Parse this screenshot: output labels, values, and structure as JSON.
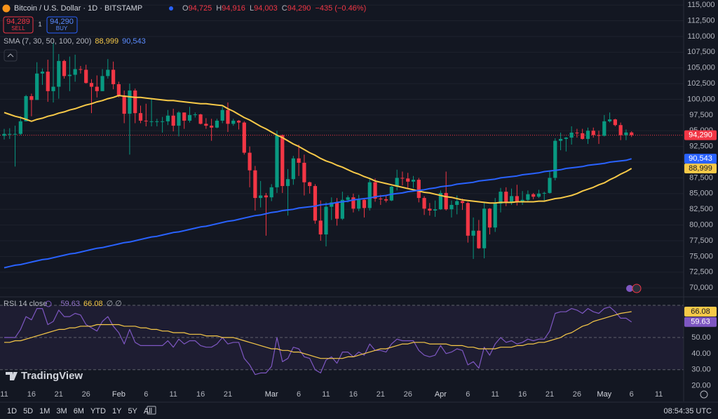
{
  "header": {
    "symbol": "Bitcoin / U.S. Dollar · 1D · BITSTAMP",
    "ohlc": [
      {
        "key": "O",
        "value": "94,725"
      },
      {
        "key": "H",
        "value": "94,916"
      },
      {
        "key": "L",
        "value": "94,003"
      },
      {
        "key": "C",
        "value": "94,290"
      }
    ],
    "change": "−435 (−0.46%)"
  },
  "trade": {
    "sell_price": "94,289",
    "sell": "SELL",
    "spread": "1",
    "buy_price": "94,290",
    "buy": "BUY"
  },
  "indicator": {
    "name": "SMA (7, 30, 50, 100, 200)",
    "values": [
      "88,999",
      "90,543"
    ]
  },
  "rsi_legend": {
    "name": "RSI 14 close",
    "values": [
      "59.63",
      "66.08"
    ],
    "extra": "∅ ∅"
  },
  "brand": "TradingView",
  "toolbar": {
    "ranges": [
      "1D",
      "5D",
      "1M",
      "3M",
      "6M",
      "YTD",
      "1Y",
      "5Y",
      "All"
    ],
    "clock": "08:54:35 UTC"
  },
  "chart_data": {
    "type": "candlestick",
    "up_color": "#089981",
    "down_color": "#f23645",
    "categories": [
      "11",
      null,
      null,
      null,
      null,
      "16",
      null,
      null,
      null,
      null,
      "21",
      null,
      null,
      null,
      null,
      "26",
      null,
      null,
      null,
      null,
      null,
      "Feb",
      null,
      null,
      null,
      null,
      "6",
      null,
      null,
      null,
      null,
      "11",
      null,
      null,
      null,
      null,
      "16",
      null,
      null,
      null,
      null,
      "21",
      null,
      null,
      null,
      null,
      null,
      null,
      null,
      "Mar",
      null,
      null,
      null,
      null,
      "6",
      null,
      null,
      null,
      null,
      "11",
      null,
      null,
      null,
      null,
      "16",
      null,
      null,
      null,
      null,
      "21",
      null,
      null,
      null,
      null,
      "26",
      null,
      null,
      null,
      null,
      null,
      "Apr",
      null,
      null,
      null,
      null,
      "6",
      null,
      null,
      null,
      null,
      "11",
      null,
      null,
      null,
      null,
      "16",
      null,
      null,
      null,
      null,
      "21",
      null,
      null,
      null,
      null,
      "26",
      null,
      null,
      null,
      null,
      "May",
      null,
      null,
      null,
      null,
      "6",
      null,
      null,
      null,
      null,
      "11"
    ],
    "open": [
      94200,
      94500,
      94500,
      94500,
      96500,
      100500,
      99900,
      104100,
      104400,
      101300,
      102000,
      106100,
      103700,
      103900,
      104800,
      104700,
      102600,
      102000,
      101300,
      103700,
      104700,
      102400,
      100600,
      97700,
      101400,
      97800,
      96600,
      96500,
      96500,
      96500,
      96500,
      97400,
      95800,
      97900,
      96600,
      97500,
      97600,
      96100,
      95800,
      95500,
      96600,
      98300,
      96100,
      96600,
      96300,
      91500,
      88700,
      84300,
      84700,
      84400,
      86000,
      94300,
      86200,
      87300,
      90600,
      89900,
      86800,
      86200,
      80700,
      78500,
      82900,
      83600,
      81000,
      84000,
      84400,
      82600,
      84000,
      82700,
      86800,
      84200,
      84100,
      83900,
      86100,
      87500,
      87400,
      86900,
      87200,
      84300,
      82600,
      82300,
      82500,
      85100,
      82500,
      83200,
      83800,
      83500,
      78300,
      79100,
      76300,
      82600,
      79600,
      83400,
      85300,
      83700,
      84600,
      83600,
      84000,
      84900,
      84500,
      85000,
      85100,
      87500,
      93400,
      93700,
      93900,
      94700,
      94600,
      93700,
      95000,
      94300,
      94200,
      96500,
      96800,
      95900,
      94300,
      94725,
      null,
      null,
      null,
      null,
      null
    ],
    "high": [
      95300,
      95400,
      95800,
      97300,
      100700,
      100900,
      105900,
      104900,
      106300,
      109000,
      107200,
      106300,
      106800,
      107100,
      105300,
      105500,
      103200,
      103800,
      104800,
      106400,
      106000,
      102800,
      101400,
      102500,
      101700,
      99000,
      99300,
      100100,
      96900,
      97200,
      98300,
      98500,
      98100,
      97900,
      98800,
      97900,
      97700,
      97000,
      96900,
      96900,
      98800,
      99500,
      96900,
      96700,
      96500,
      92500,
      89400,
      87000,
      85100,
      86500,
      95000,
      94400,
      88900,
      91000,
      92800,
      91200,
      86900,
      86500,
      83900,
      83600,
      84400,
      84300,
      85300,
      84700,
      85000,
      84800,
      84100,
      87400,
      87400,
      84800,
      84600,
      86200,
      88800,
      88500,
      88300,
      87800,
      87500,
      84600,
      83500,
      83900,
      85500,
      88500,
      83900,
      84700,
      84200,
      83700,
      81200,
      80800,
      83500,
      82700,
      84300,
      85900,
      86000,
      85800,
      86400,
      85400,
      85500,
      85100,
      85600,
      85300,
      88500,
      93800,
      94700,
      94000,
      95700,
      95300,
      95300,
      95500,
      95500,
      95000,
      97500,
      97900,
      96900,
      96300,
      95200,
      94916,
      null,
      null,
      null,
      null,
      null
    ],
    "low": [
      93600,
      93700,
      89300,
      94300,
      96500,
      97300,
      99900,
      102300,
      99600,
      99500,
      100100,
      103300,
      101300,
      102800,
      104100,
      102500,
      97800,
      100300,
      101300,
      103300,
      101600,
      100300,
      96200,
      91200,
      96200,
      96200,
      95700,
      95700,
      95700,
      94700,
      95900,
      94900,
      94100,
      95300,
      96300,
      97100,
      96000,
      95300,
      93400,
      95400,
      96200,
      94800,
      95800,
      95200,
      91200,
      86000,
      82300,
      82800,
      78300,
      83800,
      85100,
      85100,
      81500,
      86400,
      87800,
      84700,
      85000,
      80200,
      77500,
      76600,
      80800,
      79900,
      80800,
      83600,
      82000,
      82200,
      81200,
      82300,
      83700,
      83200,
      83600,
      83800,
      85500,
      86300,
      85900,
      85900,
      83600,
      81600,
      81500,
      81300,
      82400,
      82300,
      81200,
      81700,
      82400,
      77200,
      74600,
      76200,
      74700,
      78500,
      78900,
      82000,
      83000,
      83200,
      83100,
      83200,
      83800,
      84100,
      84300,
      83900,
      85000,
      87100,
      91900,
      91700,
      92800,
      93900,
      93600,
      92900,
      93900,
      92900,
      94100,
      96300,
      95700,
      93500,
      93500,
      94003,
      null,
      null,
      null,
      null,
      null
    ],
    "close": [
      94500,
      94500,
      94500,
      96500,
      100500,
      99900,
      104100,
      104400,
      101300,
      102000,
      106100,
      103700,
      103900,
      104800,
      104700,
      102600,
      102000,
      101300,
      103700,
      104700,
      102400,
      100600,
      97700,
      101400,
      97800,
      96600,
      96500,
      96500,
      96500,
      96500,
      97400,
      95800,
      97900,
      96600,
      97500,
      97600,
      96100,
      95800,
      95500,
      96600,
      98300,
      96100,
      96600,
      96300,
      91500,
      88700,
      84300,
      84700,
      84400,
      86000,
      94300,
      86200,
      87300,
      90600,
      89900,
      86800,
      86200,
      80700,
      78500,
      82900,
      83600,
      81000,
      84000,
      84400,
      82600,
      84000,
      82700,
      86800,
      84200,
      84100,
      83900,
      86100,
      87500,
      87400,
      86900,
      87200,
      84300,
      82600,
      82300,
      82500,
      85100,
      82500,
      83200,
      83800,
      83500,
      78300,
      79100,
      76300,
      82600,
      79600,
      83400,
      85300,
      83700,
      84600,
      83600,
      84000,
      84900,
      84500,
      85000,
      85100,
      87500,
      93400,
      93700,
      93900,
      94700,
      94600,
      93700,
      95000,
      94300,
      94200,
      96500,
      96800,
      95900,
      94300,
      94725,
      94290,
      null,
      null,
      null,
      null,
      null
    ],
    "series": [
      {
        "color": "#f7c948",
        "badge": "88,999",
        "values": [
          97900,
          97600,
          97300,
          97100,
          96800,
          96500,
          96800,
          97000,
          97300,
          97500,
          97800,
          98000,
          98300,
          98500,
          98800,
          99100,
          99300,
          99600,
          99800,
          100100,
          100300,
          100600,
          100500,
          100400,
          100300,
          100300,
          100200,
          100100,
          100000,
          99900,
          99800,
          99800,
          99700,
          99600,
          99500,
          99400,
          99300,
          99300,
          99200,
          99100,
          99000,
          98500,
          98100,
          97600,
          97100,
          96700,
          96200,
          95700,
          95300,
          94800,
          94300,
          93900,
          93400,
          92900,
          92500,
          92000,
          91500,
          91100,
          90600,
          90200,
          89900,
          89500,
          89200,
          88800,
          88400,
          88100,
          87700,
          87400,
          87000,
          86800,
          86600,
          86400,
          86200,
          86000,
          85800,
          85600,
          85400,
          85200,
          85100,
          84900,
          84700,
          84500,
          84400,
          84200,
          84000,
          83900,
          83800,
          83700,
          83600,
          83500,
          83500,
          83600,
          83600,
          83600,
          83700,
          83700,
          83700,
          83700,
          83800,
          83800,
          84000,
          84200,
          84300,
          84500,
          84700,
          85000,
          85400,
          85700,
          86000,
          86400,
          86700,
          87200,
          87600,
          88100,
          88500,
          88999,
          null,
          null,
          null,
          null,
          null
        ]
      },
      {
        "color": "#2962ff",
        "badge": "90,543",
        "values": [
          73200,
          73400,
          73600,
          73700,
          73900,
          74100,
          74300,
          74500,
          74600,
          74800,
          75000,
          75200,
          75400,
          75500,
          75700,
          75900,
          76100,
          76300,
          76400,
          76600,
          76800,
          77000,
          77200,
          77300,
          77500,
          77700,
          77900,
          78100,
          78200,
          78400,
          78600,
          78800,
          78900,
          79100,
          79300,
          79500,
          79700,
          79800,
          80000,
          80200,
          80400,
          80600,
          80700,
          80900,
          81100,
          81300,
          81500,
          81600,
          81800,
          82000,
          82100,
          82300,
          82400,
          82500,
          82700,
          82800,
          82900,
          83000,
          83200,
          83300,
          83400,
          83600,
          83700,
          83800,
          84000,
          84100,
          84200,
          84300,
          84500,
          84600,
          84700,
          84900,
          85000,
          85100,
          85300,
          85400,
          85500,
          85600,
          85800,
          85900,
          86100,
          86200,
          86300,
          86500,
          86600,
          86700,
          86800,
          87000,
          87100,
          87200,
          87300,
          87500,
          87600,
          87700,
          87800,
          88000,
          88100,
          88200,
          88300,
          88500,
          88600,
          88700,
          88800,
          89000,
          89100,
          89200,
          89300,
          89500,
          89600,
          89700,
          89800,
          90000,
          90100,
          90200,
          90300,
          90543,
          null,
          null,
          null,
          null,
          null
        ]
      }
    ],
    "price_line": {
      "value": 94290,
      "label": "94,290",
      "color": "#f23645"
    },
    "ylim": [
      68900,
      115800
    ],
    "yticks": [
      {
        "value": 70000,
        "label": "70,000"
      },
      {
        "value": 72500,
        "label": "72,500"
      },
      {
        "value": 75000,
        "label": "75,000"
      },
      {
        "value": 77500,
        "label": "77,500"
      },
      {
        "value": 80000,
        "label": "80,000"
      },
      {
        "value": 82500,
        "label": "82,500"
      },
      {
        "value": 85000,
        "label": "85,000"
      },
      {
        "value": 87500,
        "label": "87,500"
      },
      {
        "value": 90000,
        "label": "90,000"
      },
      {
        "value": 92500,
        "label": "92,500"
      },
      {
        "value": 95000,
        "label": "95,000"
      },
      {
        "value": 97500,
        "label": "97,500"
      },
      {
        "value": 100000,
        "label": "100,000"
      },
      {
        "value": 102500,
        "label": "102,500"
      },
      {
        "value": 105000,
        "label": "105,000"
      },
      {
        "value": 107500,
        "label": "107,500"
      },
      {
        "value": 110000,
        "label": "110,000"
      },
      {
        "value": 112500,
        "label": "112,500"
      },
      {
        "value": 115000,
        "label": "115,000"
      }
    ],
    "grid": true
  },
  "rsi": {
    "type": "line",
    "series": [
      {
        "color": "#7e57c2",
        "values": [
          50,
          50,
          50,
          55,
          63,
          61,
          68,
          68,
          58,
          60,
          67,
          63,
          63,
          65,
          64,
          58,
          56,
          54,
          60,
          63,
          57,
          53,
          46,
          55,
          47,
          45,
          45,
          45,
          45,
          45,
          48,
          44,
          49,
          46,
          48,
          48,
          45,
          44,
          44,
          46,
          50,
          46,
          47,
          47,
          37,
          33,
          27,
          28,
          28,
          32,
          50,
          35,
          37,
          44,
          43,
          38,
          37,
          30,
          28,
          36,
          38,
          34,
          41,
          41,
          38,
          41,
          39,
          46,
          42,
          42,
          41,
          46,
          49,
          48,
          48,
          48,
          42,
          39,
          38,
          39,
          45,
          40,
          41,
          43,
          42,
          33,
          35,
          31,
          44,
          39,
          46,
          50,
          47,
          48,
          46,
          47,
          49,
          48,
          49,
          49,
          54,
          65,
          66,
          66,
          68,
          67,
          65,
          68,
          66,
          65,
          68,
          69,
          66,
          62,
          62,
          59.63,
          null,
          null,
          null,
          null,
          null
        ]
      },
      {
        "color": "#f7c948",
        "values": [
          47,
          47,
          48,
          48,
          49,
          50,
          51,
          52,
          53,
          54,
          55,
          55,
          56,
          56,
          57,
          57,
          57,
          58,
          58,
          58,
          58,
          58,
          57,
          57,
          57,
          56,
          56,
          55,
          55,
          54,
          54,
          53,
          53,
          53,
          52,
          52,
          52,
          51,
          51,
          51,
          50,
          50,
          50,
          49,
          48,
          47,
          46,
          45,
          44,
          43,
          43,
          42,
          42,
          41,
          41,
          40,
          39,
          38,
          37,
          37,
          37,
          37,
          37,
          38,
          38,
          39,
          40,
          41,
          42,
          43,
          43,
          44,
          45,
          46,
          46,
          47,
          47,
          47,
          46,
          46,
          46,
          46,
          45,
          45,
          45,
          44,
          44,
          43,
          43,
          43,
          43,
          44,
          44,
          44,
          45,
          45,
          46,
          46,
          47,
          47,
          48,
          49,
          50,
          52,
          53,
          55,
          57,
          58,
          60,
          61,
          62,
          63,
          64,
          65,
          65.5,
          66.08,
          null,
          null,
          null,
          null,
          null
        ]
      }
    ],
    "badges": [
      "66.08",
      "59.63"
    ],
    "levels": [
      70,
      50,
      30
    ],
    "ylim": [
      16.4,
      74.8
    ],
    "yticks": [
      {
        "value": 50,
        "label": "50.00"
      },
      {
        "value": 40,
        "label": "40.00"
      },
      {
        "value": 30,
        "label": "30.00"
      },
      {
        "value": 20,
        "label": "20.00"
      }
    ]
  }
}
